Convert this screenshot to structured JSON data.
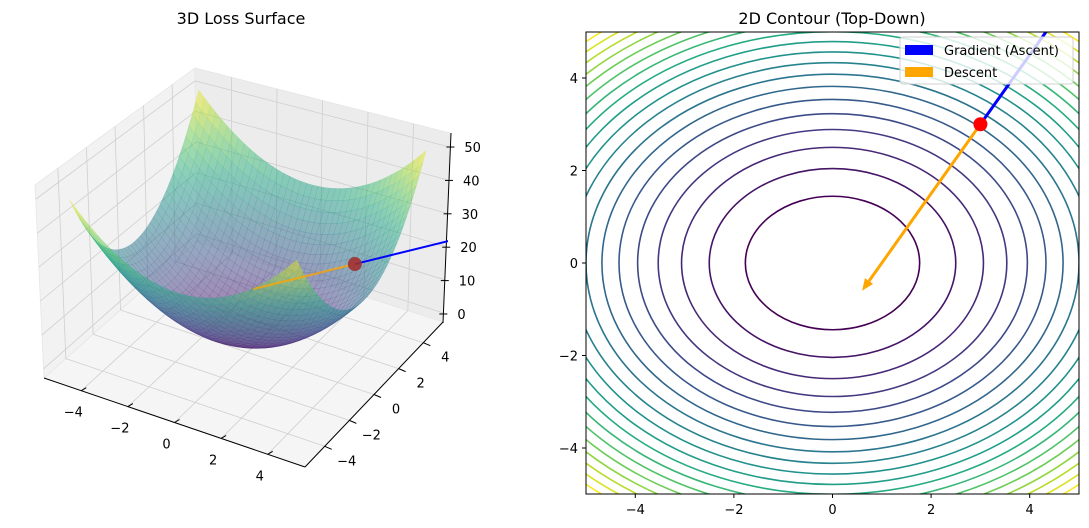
{
  "chart_data": [
    {
      "type": "surface3d",
      "title": "3D Loss Surface",
      "surface_coefficients": {
        "x2": 1,
        "y2": 1.5
      },
      "x_range": [
        -5,
        5
      ],
      "y_range": [
        -5,
        5
      ],
      "x_ticks": [
        -4,
        -2,
        0,
        2,
        4
      ],
      "y_ticks": [
        -4,
        -2,
        0,
        2,
        4
      ],
      "z_ticks": [
        0,
        10,
        20,
        30,
        40,
        50
      ],
      "colormap": "viridis",
      "point": {
        "x": 3,
        "y": 3,
        "z": 22.5,
        "color": "#a03030"
      },
      "gradient_arrow": {
        "dx": 2.4,
        "dy": 3.6,
        "color": "#0000ff"
      },
      "descent_arrow": {
        "dx": -2.4,
        "dy": -3.6,
        "color": "#ffa500"
      }
    },
    {
      "type": "contour",
      "title": "2D Contour (Top-Down)",
      "surface_coefficients": {
        "x2": 1,
        "y2": 1.5
      },
      "xlim": [
        -5,
        5
      ],
      "ylim": [
        -5,
        5
      ],
      "x_ticks": [
        -4,
        -2,
        0,
        2,
        4
      ],
      "y_ticks": [
        -4,
        -2,
        0,
        2,
        4
      ],
      "levels": [
        3.125,
        6.25,
        9.375,
        12.5,
        15.625,
        18.75,
        21.875,
        25,
        28.125,
        31.25,
        34.375,
        37.5,
        40.625,
        43.75,
        46.875,
        50,
        53.125,
        56.25,
        59.375
      ],
      "colormap": "viridis",
      "point": {
        "x": 3,
        "y": 3,
        "color": "#ff0000"
      },
      "gradient_arrow": {
        "dx": 2.4,
        "dy": 3.6,
        "color": "#0000ff"
      },
      "descent_arrow": {
        "dx": -2.4,
        "dy": -3.6,
        "color": "#ffa500"
      },
      "legend": {
        "position": "top-right",
        "entries": [
          {
            "label": "Gradient (Ascent)",
            "color": "#0000ff"
          },
          {
            "label": "Descent",
            "color": "#ffa500"
          }
        ]
      }
    }
  ]
}
